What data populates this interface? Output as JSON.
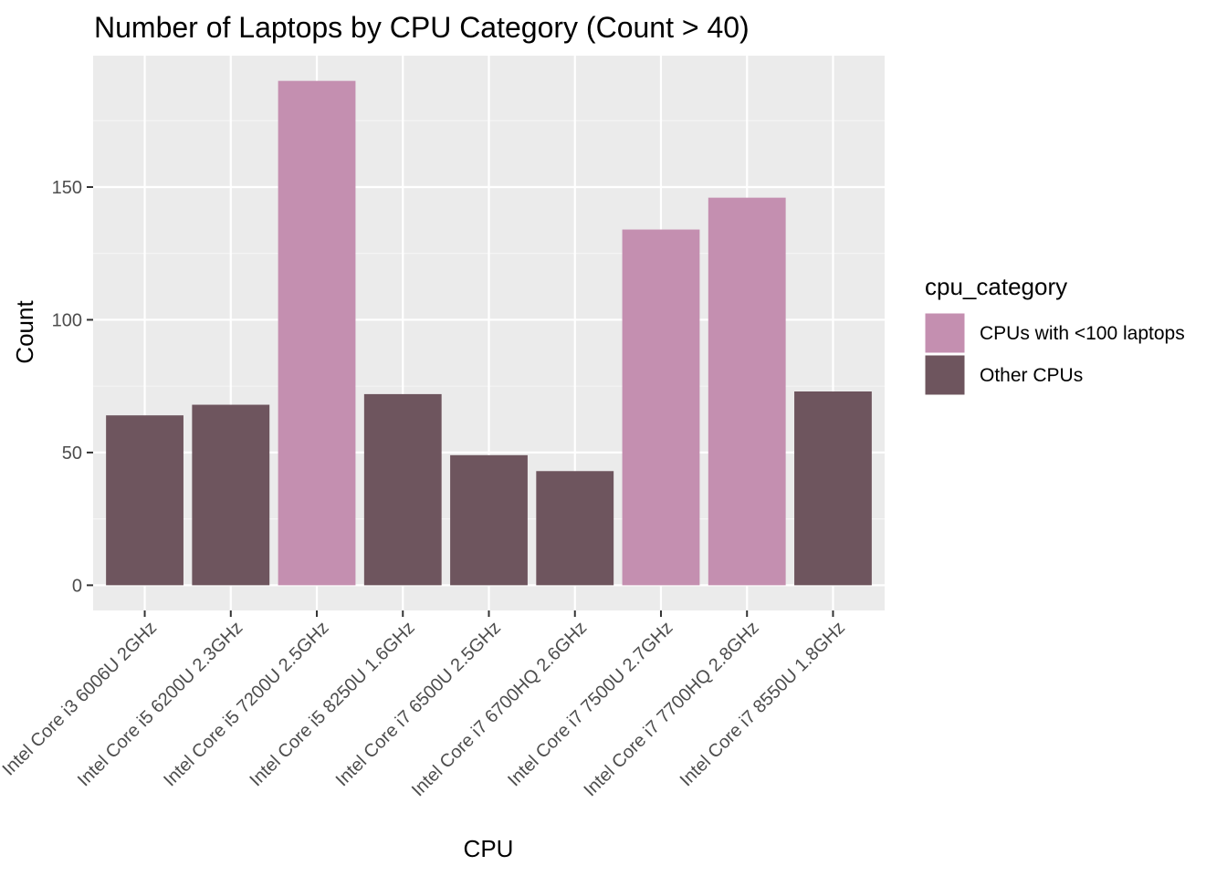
{
  "chart_data": {
    "type": "bar",
    "title": "Number of Laptops by CPU Category (Count > 40)",
    "xlabel": "CPU",
    "ylabel": "Count",
    "ylim": [
      -9.5,
      199.5
    ],
    "yticks": [
      0,
      50,
      100,
      150
    ],
    "grid": true,
    "legend_position": "right",
    "legend_title": "cpu_category",
    "legend": [
      {
        "name": "CPUs with <100 laptops",
        "color": "#c48fb0"
      },
      {
        "name": "Other CPUs",
        "color": "#6e555e"
      }
    ],
    "categories": [
      "Intel Core i3 6006U 2GHz",
      "Intel Core i5 6200U 2.3GHz",
      "Intel Core i5 7200U 2.5GHz",
      "Intel Core i5 8250U 1.6GHz",
      "Intel Core i7 6500U 2.5GHz",
      "Intel Core i7 6700HQ 2.6GHz",
      "Intel Core i7 7500U 2.7GHz",
      "Intel Core i7 7700HQ 2.8GHz",
      "Intel Core i7 8550U 1.8GHz"
    ],
    "values": [
      64,
      68,
      190,
      72,
      49,
      43,
      134,
      146,
      73
    ],
    "bar_category": [
      "Other CPUs",
      "Other CPUs",
      "CPUs with <100 laptops",
      "Other CPUs",
      "Other CPUs",
      "Other CPUs",
      "CPUs with <100 laptops",
      "CPUs with <100 laptops",
      "Other CPUs"
    ],
    "colors": {
      "panel_bg": "#ebebeb",
      "grid_major": "#ffffff",
      "grid_minor": "#f5f5f5",
      "tick_text": "#4d4d4d",
      "tick_mark": "#333333"
    }
  }
}
